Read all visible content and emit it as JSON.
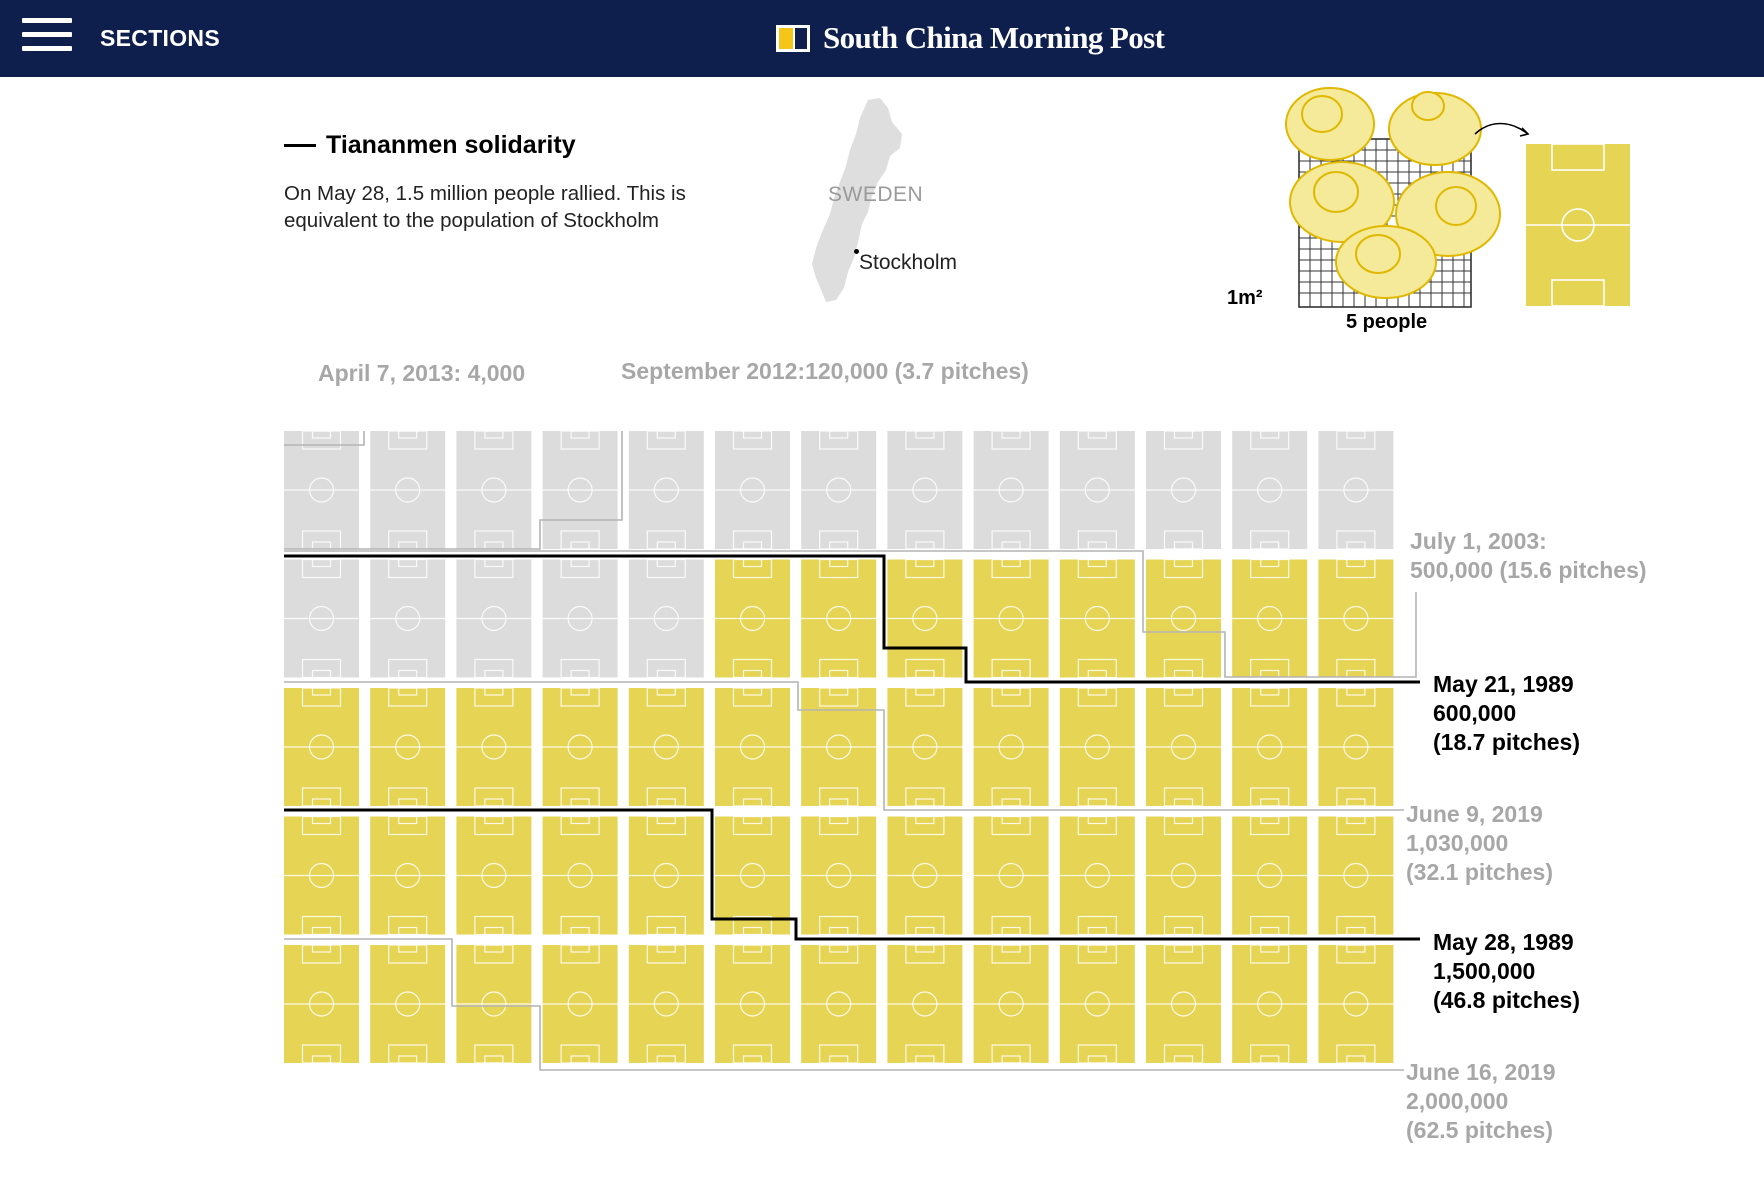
{
  "header": {
    "sections_label": "SECTIONS",
    "brand_name": "South China Morning Post",
    "colors": {
      "bar": "#0f1f4d",
      "logo_yellow": "#f5c518"
    }
  },
  "intro": {
    "title": "Tiananmen solidarity",
    "body": "On May 28, 1.5 million people rallied. This is equivalent to the population of Stockholm"
  },
  "map": {
    "country": "SWEDEN",
    "city": "Stockholm"
  },
  "scale": {
    "unit_label": "1m²",
    "people_label": "5 people"
  },
  "chart_data": {
    "type": "pictogram",
    "unit": "football pitch",
    "grid": {
      "rows": 5,
      "cols": 13,
      "total": 65
    },
    "colors": {
      "filled": "#e6d454",
      "empty": "#dcdcdc",
      "marking": "#ffffff",
      "highlight_line": "#000000",
      "other_line": "#b4b4b4"
    },
    "filled_pitches": 46.8,
    "series": [
      {
        "date": "April 7, 2013:",
        "value": "4,000",
        "highlight": false
      },
      {
        "date": "September 2012:",
        "value": "120,000 (3.7 pitches)",
        "pitches": 3.7,
        "highlight": false
      },
      {
        "date": "July 1, 2003:",
        "value": "500,000 (15.6 pitches)",
        "pitches": 15.6,
        "highlight": false
      },
      {
        "date": "May 21, 1989",
        "value": "600,000",
        "pitches_text": "(18.7 pitches)",
        "pitches": 18.7,
        "highlight": true
      },
      {
        "date": "June 9, 2019",
        "value": "1,030,000",
        "pitches_text": "(32.1 pitches)",
        "pitches": 32.1,
        "highlight": false
      },
      {
        "date": "May 28, 1989",
        "value": "1,500,000",
        "pitches_text": "(46.8 pitches)",
        "pitches": 46.8,
        "highlight": true
      },
      {
        "date": "June 16, 2019",
        "value": "2,000,000",
        "pitches_text": "(62.5 pitches)",
        "pitches": 62.5,
        "highlight": false
      }
    ]
  }
}
